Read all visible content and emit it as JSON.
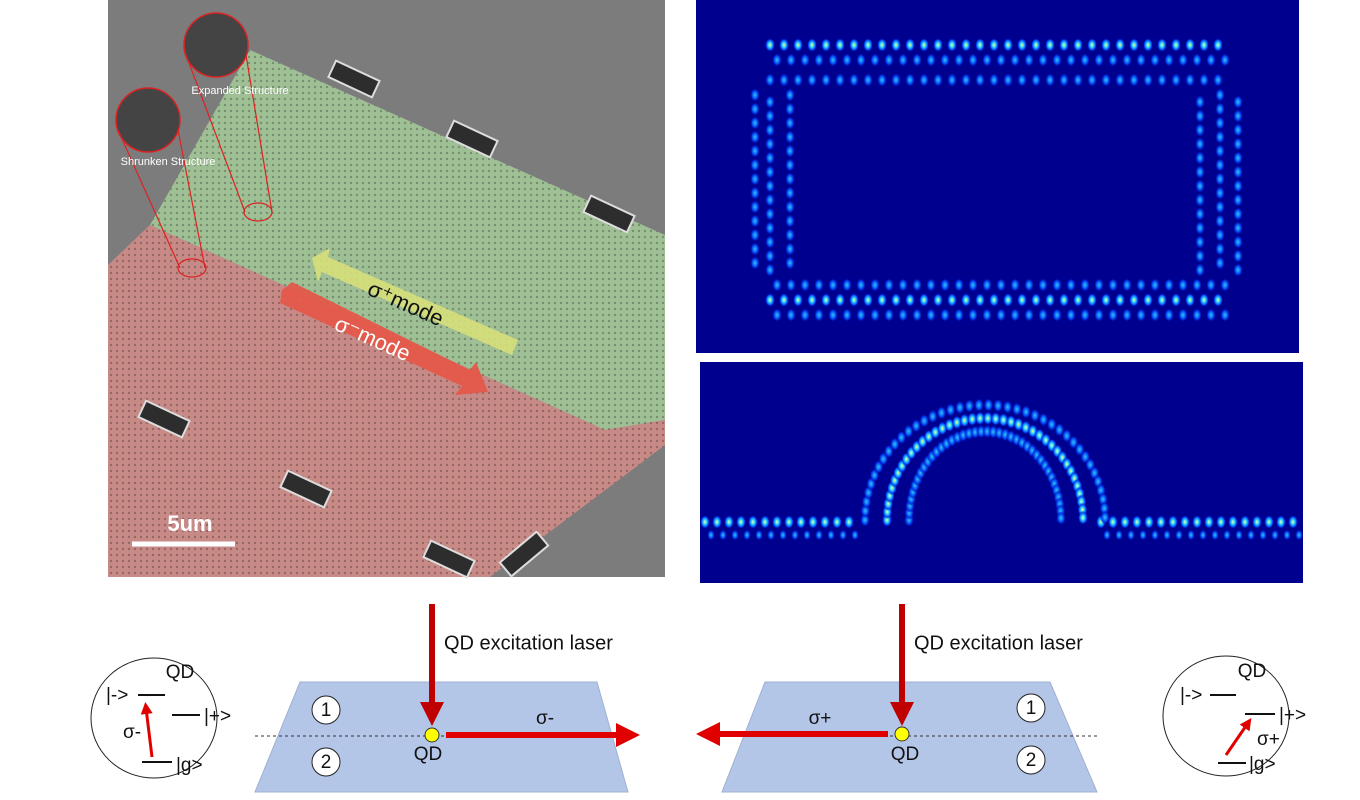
{
  "sem_panel": {
    "expanded_label": "Expanded Structure",
    "shrunken_label": "Shrunken Structure",
    "plus_mode": "σ⁺mode",
    "minus_mode": "σ⁻mode",
    "scale_bar": "5um"
  },
  "left_device": {
    "laser": "QD excitation laser",
    "region_1": "1",
    "region_2": "2",
    "qd": "QD",
    "emission": "σ-"
  },
  "right_device": {
    "laser": "QD excitation laser",
    "region_1": "1",
    "region_2": "2",
    "qd": "QD",
    "emission": "σ+"
  },
  "left_levels": {
    "title": "QD",
    "minus": "|->",
    "plus": "|+>",
    "transition": "σ-",
    "ground": "|g>"
  },
  "right_levels": {
    "title": "QD",
    "minus": "|->",
    "plus": "|+>",
    "transition": "σ+",
    "ground": "|g>"
  }
}
